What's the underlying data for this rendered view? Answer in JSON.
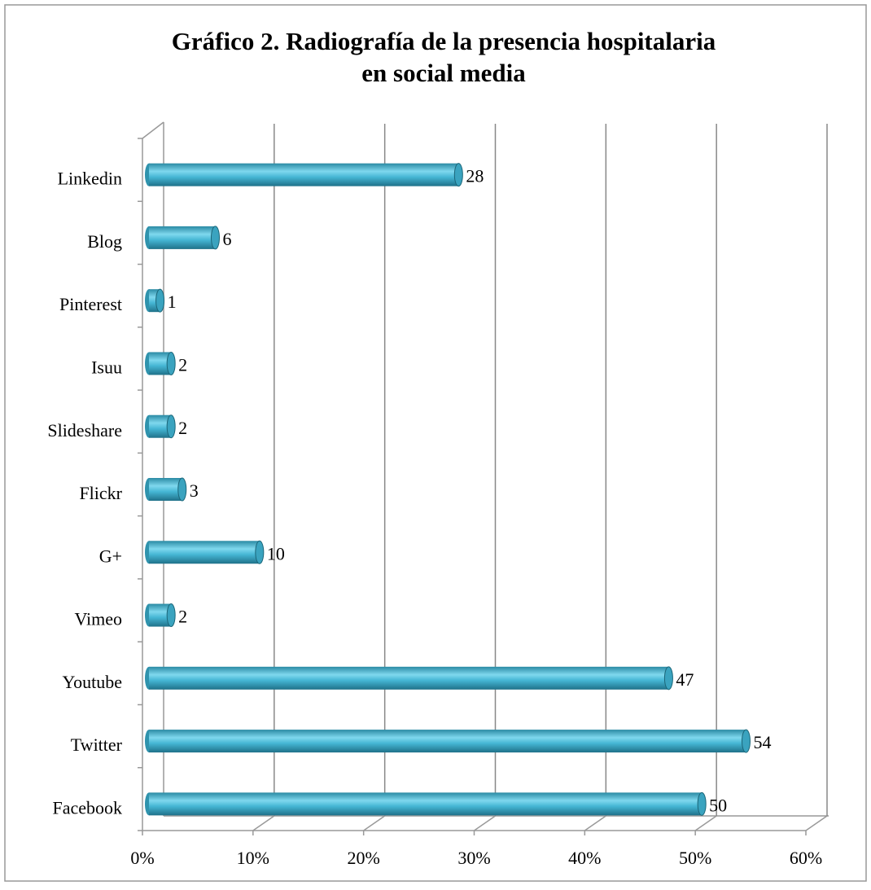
{
  "chart_data": {
    "type": "bar",
    "orientation": "horizontal",
    "title": [
      "Gráfico 2. Radiografía de la presencia hospitalaria",
      "en social media"
    ],
    "categories": [
      "Linkedin",
      "Blog",
      "Pinterest",
      "Isuu",
      "Slideshare",
      "Flickr",
      "G+",
      "Vimeo",
      "Youtube",
      "Twitter",
      "Facebook"
    ],
    "values": [
      28,
      6,
      1,
      2,
      2,
      3,
      10,
      2,
      47,
      54,
      50
    ],
    "color": "#41b3d3",
    "xlim": [
      0,
      60
    ],
    "xticks": [
      {
        "value": 0,
        "label": "0%"
      },
      {
        "value": 10,
        "label": "10%"
      },
      {
        "value": 20,
        "label": "20%"
      },
      {
        "value": 30,
        "label": "30%"
      },
      {
        "value": 40,
        "label": "40%"
      },
      {
        "value": 50,
        "label": "50%"
      },
      {
        "value": 60,
        "label": "60%"
      }
    ],
    "grid": true
  }
}
